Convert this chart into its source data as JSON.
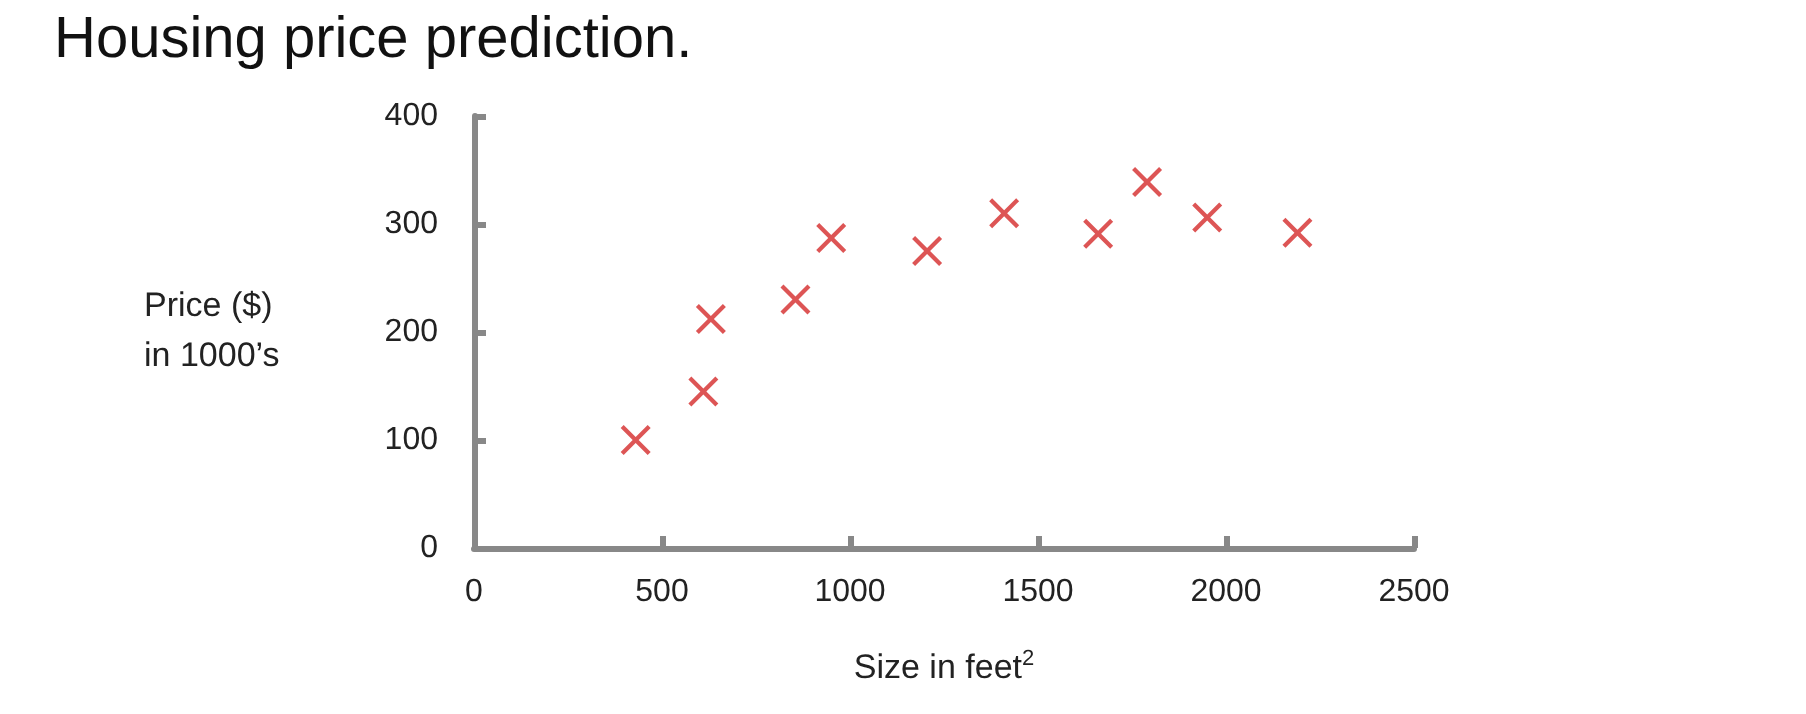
{
  "chart_data": {
    "type": "scatter",
    "title": "Housing price prediction.",
    "xlabel": "Size in feet$^{2}$",
    "ylabel": "Price ($)\nin 1000’s",
    "x": [
      430,
      610,
      630,
      855,
      950,
      1205,
      1410,
      1660,
      1790,
      1950,
      2190
    ],
    "series": [
      {
        "color": "#d42a2a",
        "values": [
          100,
          145,
          212,
          230,
          287,
          275,
          310,
          291,
          339,
          306,
          292
        ]
      }
    ],
    "xlim": [
      0,
      2500
    ],
    "xticks": [
      0,
      500,
      1000,
      1500,
      2000,
      2500
    ],
    "ylim": [
      0,
      400
    ],
    "yticks": [
      0,
      100,
      200,
      300,
      400
    ],
    "grid": false,
    "marker": "cross"
  }
}
